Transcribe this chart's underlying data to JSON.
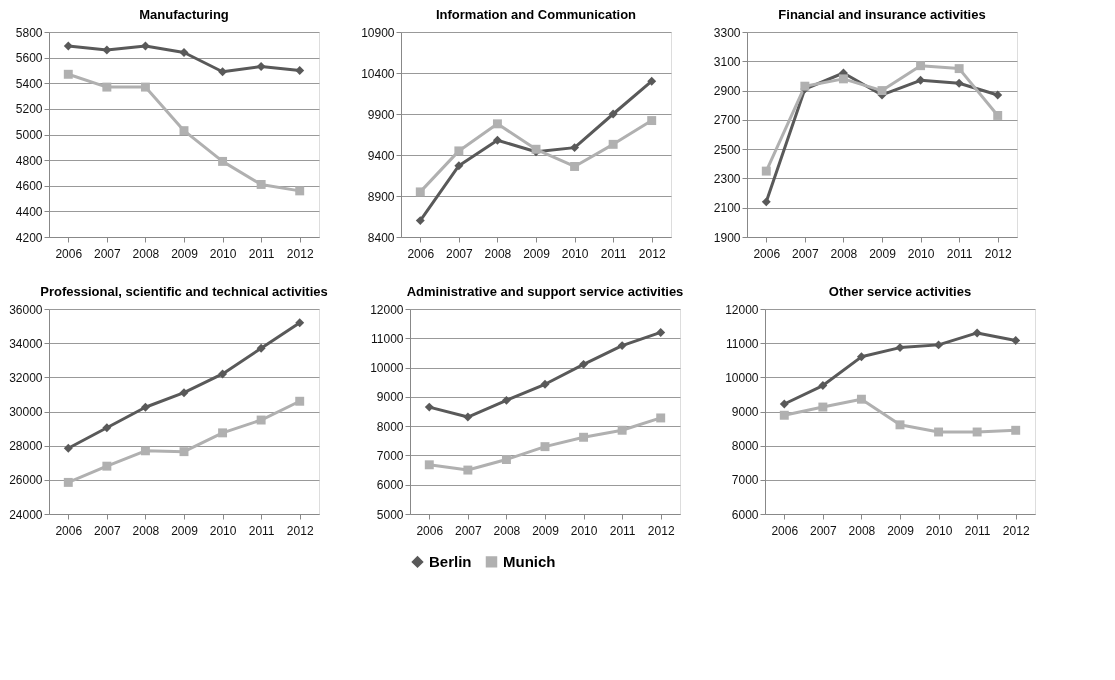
{
  "chart_data": [
    {
      "type": "line",
      "title": "Manufacturing",
      "categories": [
        "2006",
        "2007",
        "2008",
        "2009",
        "2010",
        "2011",
        "2012"
      ],
      "ylim": [
        4200,
        5800
      ],
      "yticks": [
        4200,
        4400,
        4600,
        4800,
        5000,
        5200,
        5400,
        5600,
        5800
      ],
      "grid": "y",
      "series": [
        {
          "color": "#595959",
          "marker": "diamond",
          "values": [
            5690,
            5660,
            5690,
            5640,
            5490,
            5530,
            5500
          ]
        },
        {
          "color": "#b0b0b0",
          "marker": "square",
          "values": [
            5470,
            5370,
            5370,
            5030,
            4790,
            4610,
            4560
          ]
        }
      ]
    },
    {
      "type": "line",
      "title": "Information and Communication",
      "categories": [
        "2006",
        "2007",
        "2008",
        "2009",
        "2010",
        "2011",
        "2012"
      ],
      "ylim": [
        8400,
        10900
      ],
      "yticks": [
        8400,
        8900,
        9400,
        9900,
        10400,
        10900
      ],
      "grid": "y",
      "series": [
        {
          "color": "#595959",
          "marker": "diamond",
          "values": [
            8600,
            9270,
            9580,
            9440,
            9490,
            9900,
            10300
          ]
        },
        {
          "color": "#b0b0b0",
          "marker": "square",
          "values": [
            8950,
            9450,
            9780,
            9470,
            9260,
            9530,
            9820
          ]
        }
      ]
    },
    {
      "type": "line",
      "title": "Financial and insurance activities",
      "categories": [
        "2006",
        "2007",
        "2008",
        "2009",
        "2010",
        "2011",
        "2012"
      ],
      "ylim": [
        1900,
        3300
      ],
      "yticks": [
        1900,
        2100,
        2300,
        2500,
        2700,
        2900,
        3100,
        3300
      ],
      "grid": "y",
      "series": [
        {
          "color": "#595959",
          "marker": "diamond",
          "values": [
            2140,
            2910,
            3020,
            2870,
            2970,
            2950,
            2870
          ]
        },
        {
          "color": "#b0b0b0",
          "marker": "square",
          "values": [
            2350,
            2930,
            2980,
            2900,
            3070,
            3050,
            2730
          ]
        }
      ]
    },
    {
      "type": "line",
      "title": "Professional, scientific and technical activities",
      "categories": [
        "2006",
        "2007",
        "2008",
        "2009",
        "2010",
        "2011",
        "2012"
      ],
      "ylim": [
        24000,
        36000
      ],
      "yticks": [
        24000,
        26000,
        28000,
        30000,
        32000,
        34000,
        36000
      ],
      "grid": "y",
      "series": [
        {
          "color": "#595959",
          "marker": "diamond",
          "values": [
            27850,
            29050,
            30250,
            31100,
            32200,
            33700,
            35200
          ]
        },
        {
          "color": "#b0b0b0",
          "marker": "square",
          "values": [
            25850,
            26800,
            27700,
            27650,
            28750,
            29500,
            30600
          ]
        }
      ]
    },
    {
      "type": "line",
      "title": "Administrative and support service activities",
      "categories": [
        "2006",
        "2007",
        "2008",
        "2009",
        "2010",
        "2011",
        "2012"
      ],
      "ylim": [
        5000,
        12000
      ],
      "yticks": [
        5000,
        6000,
        7000,
        8000,
        9000,
        10000,
        11000,
        12000
      ],
      "grid": "y",
      "legend": "bottom",
      "series": [
        {
          "name": "Berlin",
          "color": "#595959",
          "marker": "diamond",
          "values": [
            8650,
            8310,
            8880,
            9430,
            10110,
            10750,
            11200
          ]
        },
        {
          "name": "Munich",
          "color": "#b0b0b0",
          "marker": "square",
          "values": [
            6680,
            6500,
            6860,
            7300,
            7620,
            7860,
            8280
          ]
        }
      ]
    },
    {
      "type": "line",
      "title": "Other service activities",
      "categories": [
        "2006",
        "2007",
        "2008",
        "2009",
        "2010",
        "2011",
        "2012"
      ],
      "ylim": [
        6000,
        12000
      ],
      "yticks": [
        6000,
        7000,
        8000,
        9000,
        10000,
        11000,
        12000
      ],
      "grid": "y",
      "series": [
        {
          "color": "#595959",
          "marker": "diamond",
          "values": [
            9220,
            9760,
            10600,
            10870,
            10950,
            11300,
            11080
          ]
        },
        {
          "color": "#b0b0b0",
          "marker": "square",
          "values": [
            8890,
            9130,
            9360,
            8610,
            8400,
            8400,
            8450
          ]
        }
      ]
    }
  ]
}
